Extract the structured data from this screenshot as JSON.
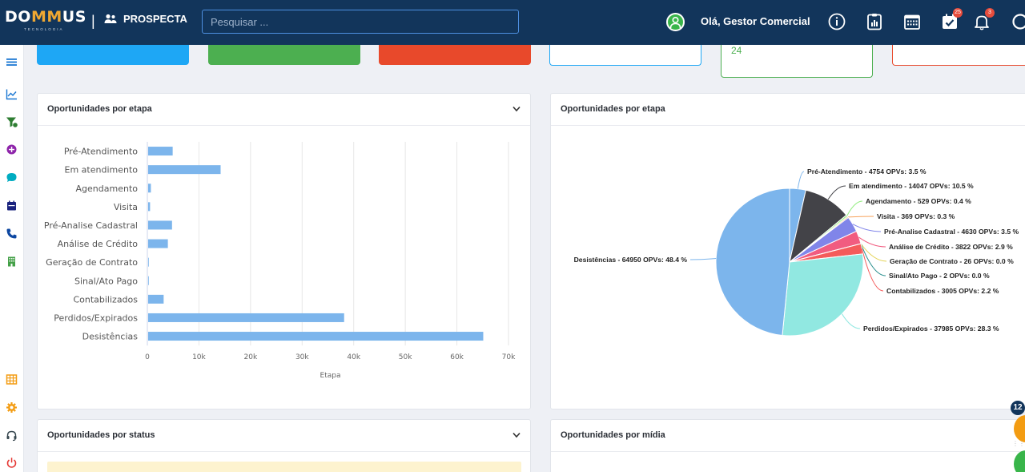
{
  "header": {
    "logo_text_a": "DO",
    "logo_text_b": "MM",
    "logo_text_c": "US",
    "logo_sub": "TECNOLOGIA",
    "separator": "|",
    "module": "PROSPECTA",
    "search_placeholder": "Pesquisar ...",
    "greeting": "Olá, Gestor Comercial",
    "tasks_badge": "25",
    "notifications_badge": "3"
  },
  "stat_cards": {
    "value_green": "24"
  },
  "cards": {
    "stage_bar_title": "Oportunidades por etapa",
    "stage_pie_title": "Oportunidades por etapa",
    "status_title": "Oportunidades por status",
    "media_title": "Oportunidades por mídia"
  },
  "floating": {
    "count": "12"
  },
  "colors": {
    "topbar": "#12355b",
    "stat_blue": "#1ea7f5",
    "stat_green": "#4caf50",
    "stat_red": "#e8492b",
    "bar": "#7cb5ec"
  },
  "chart_data": [
    {
      "type": "bar",
      "orientation": "horizontal",
      "categories": [
        "Pré-Atendimento",
        "Em atendimento",
        "Agendamento",
        "Visita",
        "Pré-Analise Cadastral",
        "Análise de Crédito",
        "Geração de Contrato",
        "Sinal/Ato Pago",
        "Contabilizados",
        "Perdidos/Expirados",
        "Desistências"
      ],
      "values": [
        4754,
        14047,
        529,
        369,
        4630,
        3822,
        26,
        2,
        3005,
        37985,
        64950
      ],
      "xlabel": "Etapa",
      "xlim": [
        0,
        70000
      ],
      "xticks": [
        "0",
        "10k",
        "20k",
        "30k",
        "40k",
        "50k",
        "60k",
        "70k"
      ],
      "grid": true
    },
    {
      "type": "pie",
      "slices": [
        {
          "label": "Pré-Atendimento - 4754 OPVs: 3.5 %",
          "value": 4754,
          "color": "#7cb5ec"
        },
        {
          "label": "Em atendimento - 14047 OPVs: 10.5 %",
          "value": 14047,
          "color": "#434348"
        },
        {
          "label": "Agendamento - 529 OPVs: 0.4 %",
          "value": 529,
          "color": "#90ed7d"
        },
        {
          "label": "Visita - 369 OPVs: 0.3 %",
          "value": 369,
          "color": "#f7a35c"
        },
        {
          "label": "Pré-Analise Cadastral - 4630 OPVs: 3.5 %",
          "value": 4630,
          "color": "#8085e9"
        },
        {
          "label": "Análise de Crédito - 3822 OPVs: 2.9 %",
          "value": 3822,
          "color": "#f15c80"
        },
        {
          "label": "Geração de Contrato - 26 OPVs: 0.0 %",
          "value": 26,
          "color": "#e4d354"
        },
        {
          "label": "Sinal/Ato Pago - 2 OPVs: 0.0 %",
          "value": 2,
          "color": "#2b908f"
        },
        {
          "label": "Contabilizados - 3005 OPVs: 2.2 %",
          "value": 3005,
          "color": "#f45b5b"
        },
        {
          "label": "Perdidos/Expirados - 37985 OPVs: 28.3 %",
          "value": 37985,
          "color": "#91e8e1"
        },
        {
          "label": "Desistências - 64950 OPVs: 48.4 %",
          "value": 64950,
          "color": "#7cb5ec"
        }
      ]
    }
  ]
}
